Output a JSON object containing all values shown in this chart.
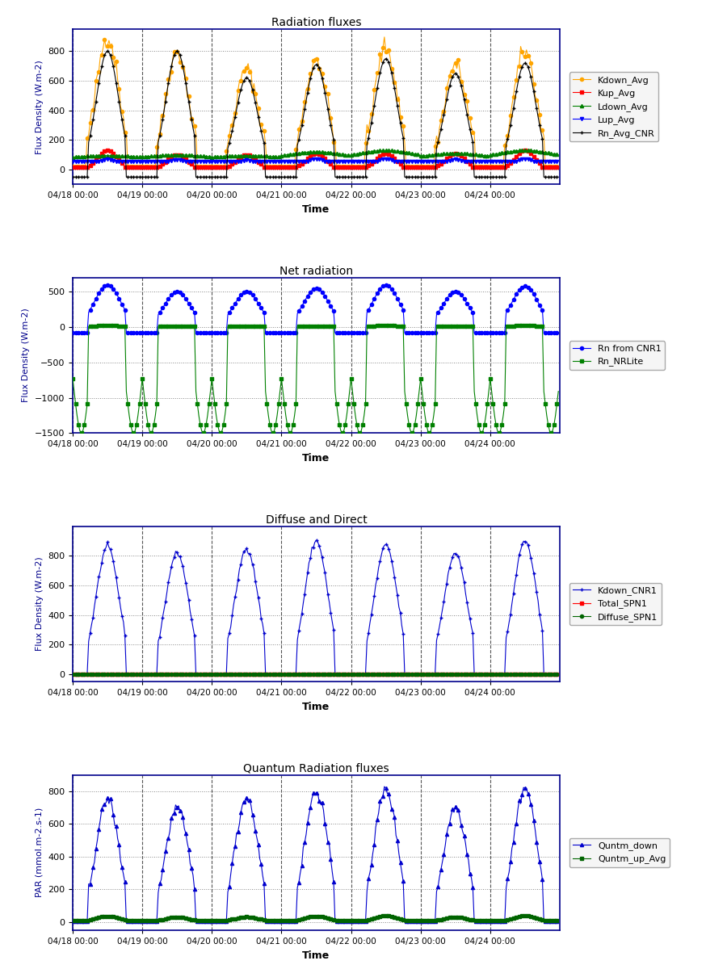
{
  "plots": [
    {
      "title": "Radiation fluxes",
      "ylabel": "Flux Density (W.m-2)",
      "xlabel": "Time",
      "ylim": [
        -100,
        950
      ],
      "yticks": [
        0,
        200,
        400,
        600,
        800
      ],
      "series": [
        {
          "label": "Kdown_Avg",
          "color": "#FFA500",
          "marker": "o",
          "markersize": 3,
          "linewidth": 0.8,
          "style": "orange_dots",
          "peak_vals": [
            900,
            800,
            680,
            750,
            830,
            710,
            800
          ],
          "base_val": 20
        },
        {
          "label": "Kup_Avg",
          "color": "#FF0000",
          "marker": "s",
          "markersize": 3,
          "linewidth": 0.8,
          "style": "red",
          "peak_vals": [
            130,
            100,
            100,
            110,
            110,
            110,
            130
          ],
          "base_val": 15
        },
        {
          "label": "Ldown_Avg",
          "color": "#008000",
          "marker": "^",
          "markersize": 3,
          "linewidth": 0.8,
          "style": "green",
          "peak_vals": [
            95,
            100,
            95,
            120,
            130,
            110,
            130
          ],
          "base_val": 78
        },
        {
          "label": "Lup_Avg",
          "color": "#0000FF",
          "marker": "v",
          "markersize": 3,
          "linewidth": 0.8,
          "style": "blue",
          "peak_vals": [
            70,
            68,
            65,
            72,
            72,
            70,
            72
          ],
          "base_val": 55
        },
        {
          "label": "Rn_Avg_CNR",
          "color": "#000000",
          "marker": "+",
          "markersize": 3,
          "linewidth": 0.8,
          "style": "black",
          "peak_vals": [
            800,
            800,
            620,
            710,
            750,
            650,
            720
          ],
          "base_val": -50
        }
      ]
    },
    {
      "title": "Net radiation",
      "ylabel": "Flux Density (W.m-2)",
      "xlabel": "Time",
      "ylim": [
        -1500,
        700
      ],
      "yticks": [
        -1500,
        -1000,
        -500,
        0,
        500
      ],
      "series": [
        {
          "label": "Rn from CNR1",
          "color": "#0000FF",
          "marker": "o",
          "markersize": 3,
          "linewidth": 0.8,
          "style": "blue_rn",
          "peak_vals": [
            600,
            500,
            500,
            550,
            600,
            500,
            580
          ],
          "base_val": -80
        },
        {
          "label": "Rn_NRLite",
          "color": "#008000",
          "marker": "s",
          "markersize": 3,
          "linewidth": 0.8,
          "style": "green_nr",
          "peak_vals": [
            130,
            100,
            100,
            100,
            130,
            100,
            130
          ],
          "base_val": -1500
        }
      ]
    },
    {
      "title": "Diffuse and Direct",
      "ylabel": "Flux Density (W.m-2)",
      "xlabel": "Time",
      "ylim": [
        -50,
        1000
      ],
      "yticks": [
        0,
        200,
        400,
        600,
        800
      ],
      "series": [
        {
          "label": "Kdown_CNR1",
          "color": "#0000CD",
          "marker": "+",
          "markersize": 3,
          "linewidth": 0.8,
          "style": "blue_kdown",
          "peak_vals": [
            860,
            820,
            850,
            900,
            870,
            820,
            900
          ],
          "base_val": 2
        },
        {
          "label": "Total_SPN1",
          "color": "#FF0000",
          "marker": "s",
          "markersize": 3,
          "linewidth": 0.8,
          "style": "flat",
          "peak_vals": [
            2,
            2,
            2,
            2,
            2,
            2,
            2
          ],
          "base_val": 2
        },
        {
          "label": "Diffuse_SPN1",
          "color": "#006400",
          "marker": "o",
          "markersize": 3,
          "linewidth": 0.8,
          "style": "flat",
          "peak_vals": [
            2,
            2,
            2,
            2,
            2,
            2,
            2
          ],
          "base_val": 2
        }
      ]
    },
    {
      "title": "Quantum Radiation fluxes",
      "ylabel": "PAR (mmol.m-2.s-1)",
      "xlabel": "Time",
      "ylim": [
        -50,
        900
      ],
      "yticks": [
        0,
        200,
        400,
        600,
        800
      ],
      "series": [
        {
          "label": "Quntm_down",
          "color": "#0000CD",
          "marker": "^",
          "markersize": 3,
          "linewidth": 0.8,
          "style": "blue_q",
          "peak_vals": [
            750,
            700,
            760,
            800,
            810,
            700,
            820
          ],
          "base_val": 2
        },
        {
          "label": "Quntm_up_Avg",
          "color": "#006400",
          "marker": "s",
          "markersize": 3,
          "linewidth": 0.8,
          "style": "green_q",
          "peak_vals": [
            35,
            30,
            32,
            36,
            38,
            30,
            38
          ],
          "base_val": 8
        }
      ]
    }
  ],
  "n_days": 7,
  "n_pts_per_day": 48,
  "date_labels": [
    "04/18 00:00",
    "04/19 00:00",
    "04/20 00:00",
    "04/21 00:00",
    "04/22 00:00",
    "04/23 00:00",
    "04/24 00:00"
  ]
}
